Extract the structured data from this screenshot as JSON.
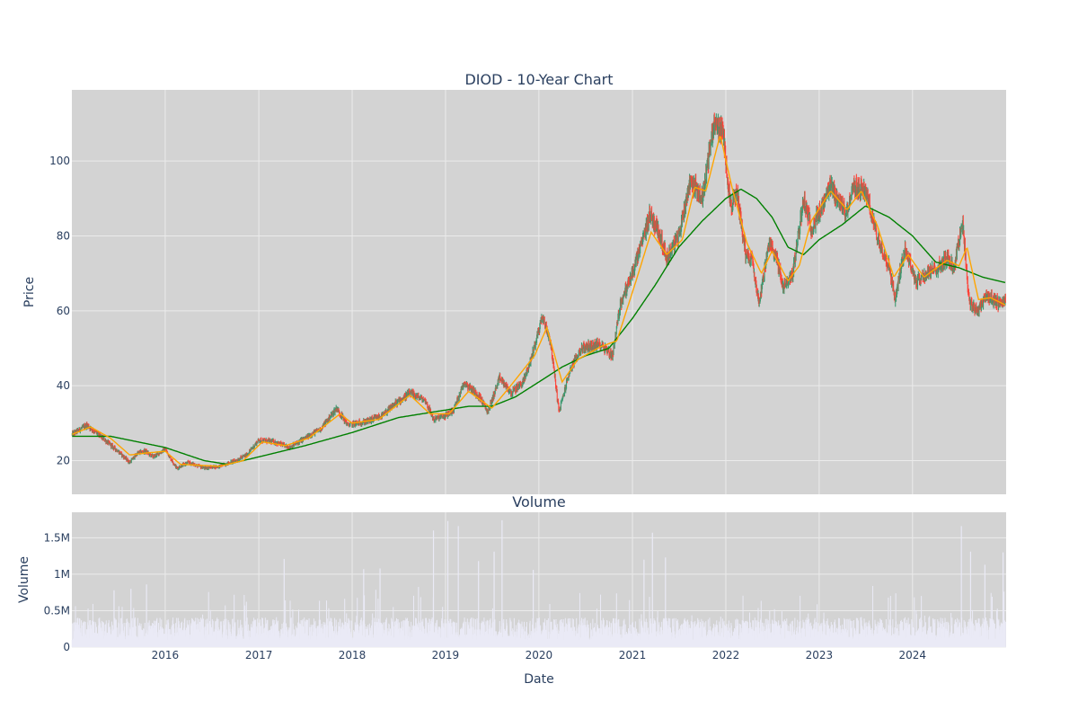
{
  "chart_data": [
    {
      "type": "candlestick",
      "title": "DIOD - 10-Year Chart",
      "ylabel": "Price",
      "xlabel": "",
      "xlim": [
        "2015-01-01",
        "2025-01-01"
      ],
      "ylim": [
        11,
        119
      ],
      "yticks": [
        20,
        40,
        60,
        80,
        100
      ],
      "grid": true,
      "legend": "none",
      "colors": {
        "up": "#3d9970",
        "down": "#ff4136",
        "ma_short": "#ffa500",
        "ma_long": "#008000",
        "background": "#d3d3d3",
        "grid": "#ebebeb"
      },
      "price_path_close": [
        [
          "2015-01-02",
          27.0
        ],
        [
          "2015-03-01",
          29.5
        ],
        [
          "2015-05-01",
          26.0
        ],
        [
          "2015-07-01",
          22.5
        ],
        [
          "2015-08-15",
          19.5
        ],
        [
          "2015-09-15",
          22.0
        ],
        [
          "2015-10-15",
          22.5
        ],
        [
          "2015-11-15",
          21.0
        ],
        [
          "2016-01-01",
          23.0
        ],
        [
          "2016-02-15",
          18.0
        ],
        [
          "2016-04-01",
          19.5
        ],
        [
          "2016-06-01",
          18.0
        ],
        [
          "2016-08-01",
          18.5
        ],
        [
          "2016-10-01",
          20.0
        ],
        [
          "2016-11-15",
          21.5
        ],
        [
          "2017-01-01",
          25.5
        ],
        [
          "2017-03-01",
          25.0
        ],
        [
          "2017-05-01",
          23.5
        ],
        [
          "2017-07-01",
          26.0
        ],
        [
          "2017-09-01",
          28.5
        ],
        [
          "2017-11-01",
          34.0
        ],
        [
          "2017-12-15",
          29.5
        ],
        [
          "2018-03-01",
          30.5
        ],
        [
          "2018-05-01",
          32.0
        ],
        [
          "2018-06-15",
          35.0
        ],
        [
          "2018-08-15",
          38.0
        ],
        [
          "2018-10-15",
          36.0
        ],
        [
          "2018-11-15",
          31.0
        ],
        [
          "2019-01-01",
          32.0
        ],
        [
          "2019-02-01",
          33.5
        ],
        [
          "2019-03-15",
          41.0
        ],
        [
          "2019-05-15",
          37.0
        ],
        [
          "2019-06-15",
          33.0
        ],
        [
          "2019-08-01",
          42.0
        ],
        [
          "2019-09-15",
          38.0
        ],
        [
          "2019-11-01",
          41.0
        ],
        [
          "2019-12-01",
          47.0
        ],
        [
          "2020-01-15",
          58.5
        ],
        [
          "2020-02-15",
          52.0
        ],
        [
          "2020-03-20",
          33.0
        ],
        [
          "2020-05-01",
          44.0
        ],
        [
          "2020-06-15",
          50.0
        ],
        [
          "2020-09-01",
          51.0
        ],
        [
          "2020-10-15",
          48.0
        ],
        [
          "2020-11-15",
          62.0
        ],
        [
          "2021-01-01",
          70.0
        ],
        [
          "2021-02-15",
          80.0
        ],
        [
          "2021-03-10",
          86.0
        ],
        [
          "2021-04-15",
          81.0
        ],
        [
          "2021-05-15",
          74.0
        ],
        [
          "2021-07-01",
          80.0
        ],
        [
          "2021-08-15",
          95.0
        ],
        [
          "2021-10-01",
          90.0
        ],
        [
          "2021-11-15",
          110.0
        ],
        [
          "2021-12-20",
          108.0
        ],
        [
          "2022-01-20",
          88.0
        ],
        [
          "2022-02-15",
          91.0
        ],
        [
          "2022-03-20",
          75.0
        ],
        [
          "2022-04-15",
          74.0
        ],
        [
          "2022-05-10",
          62.0
        ],
        [
          "2022-06-20",
          78.0
        ],
        [
          "2022-07-15",
          75.0
        ],
        [
          "2022-08-15",
          66.0
        ],
        [
          "2022-09-20",
          70.0
        ],
        [
          "2022-11-01",
          90.0
        ],
        [
          "2022-12-01",
          82.0
        ],
        [
          "2023-01-15",
          88.0
        ],
        [
          "2023-02-15",
          93.0
        ],
        [
          "2023-04-15",
          86.0
        ],
        [
          "2023-05-15",
          93.0
        ],
        [
          "2023-07-01",
          92.0
        ],
        [
          "2023-08-15",
          80.0
        ],
        [
          "2023-10-01",
          72.0
        ],
        [
          "2023-10-25",
          63.0
        ],
        [
          "2023-12-01",
          77.0
        ],
        [
          "2024-01-15",
          68.0
        ],
        [
          "2024-03-01",
          70.0
        ],
        [
          "2024-04-15",
          72.0
        ],
        [
          "2024-05-20",
          74.0
        ],
        [
          "2024-06-10",
          71.0
        ],
        [
          "2024-07-15",
          84.0
        ],
        [
          "2024-08-10",
          62.0
        ],
        [
          "2024-09-10",
          60.0
        ],
        [
          "2024-10-15",
          64.0
        ],
        [
          "2024-12-01",
          62.0
        ],
        [
          "2024-12-31",
          63.0
        ]
      ],
      "ma_short_path": [
        [
          "2015-01-02",
          27.0
        ],
        [
          "2015-03-15",
          29.0
        ],
        [
          "2015-06-01",
          26.0
        ],
        [
          "2015-08-15",
          21.5
        ],
        [
          "2015-10-15",
          22.0
        ],
        [
          "2016-01-01",
          22.5
        ],
        [
          "2016-03-01",
          19.0
        ],
        [
          "2016-08-01",
          18.5
        ],
        [
          "2016-11-01",
          20.0
        ],
        [
          "2017-01-15",
          25.0
        ],
        [
          "2017-04-15",
          24.0
        ],
        [
          "2017-07-15",
          26.0
        ],
        [
          "2017-11-15",
          32.5
        ],
        [
          "2017-12-31",
          30.0
        ],
        [
          "2018-04-15",
          31.0
        ],
        [
          "2018-08-15",
          37.5
        ],
        [
          "2018-11-01",
          32.5
        ],
        [
          "2019-01-15",
          32.5
        ],
        [
          "2019-04-01",
          38.5
        ],
        [
          "2019-07-01",
          34.0
        ],
        [
          "2019-09-01",
          39.0
        ],
        [
          "2019-12-15",
          48.0
        ],
        [
          "2020-02-01",
          55.5
        ],
        [
          "2020-04-01",
          41.0
        ],
        [
          "2020-06-01",
          47.0
        ],
        [
          "2020-09-01",
          50.5
        ],
        [
          "2020-11-01",
          52.0
        ],
        [
          "2021-01-15",
          68.0
        ],
        [
          "2021-03-15",
          81.0
        ],
        [
          "2021-05-15",
          75.0
        ],
        [
          "2021-07-15",
          79.0
        ],
        [
          "2021-09-01",
          93.0
        ],
        [
          "2021-10-15",
          92.0
        ],
        [
          "2021-12-10",
          107.0
        ],
        [
          "2022-01-25",
          93.0
        ],
        [
          "2022-03-25",
          78.0
        ],
        [
          "2022-05-20",
          70.0
        ],
        [
          "2022-07-01",
          76.0
        ],
        [
          "2022-09-01",
          68.0
        ],
        [
          "2022-10-15",
          72.0
        ],
        [
          "2022-12-01",
          84.0
        ],
        [
          "2023-02-15",
          92.0
        ],
        [
          "2023-04-20",
          87.0
        ],
        [
          "2023-06-15",
          92.0
        ],
        [
          "2023-08-15",
          83.0
        ],
        [
          "2023-10-20",
          69.0
        ],
        [
          "2023-12-15",
          75.0
        ],
        [
          "2024-02-15",
          69.0
        ],
        [
          "2024-05-15",
          73.5
        ],
        [
          "2024-07-01",
          72.0
        ],
        [
          "2024-08-01",
          77.0
        ],
        [
          "2024-09-15",
          63.0
        ],
        [
          "2024-11-01",
          63.5
        ],
        [
          "2024-12-31",
          61.5
        ]
      ],
      "ma_long_path": [
        [
          "2015-01-02",
          26.5
        ],
        [
          "2015-06-01",
          26.5
        ],
        [
          "2016-01-01",
          23.5
        ],
        [
          "2016-06-01",
          20.0
        ],
        [
          "2016-09-01",
          19.0
        ],
        [
          "2017-01-01",
          21.0
        ],
        [
          "2017-07-01",
          24.0
        ],
        [
          "2018-01-01",
          27.5
        ],
        [
          "2018-07-01",
          31.5
        ],
        [
          "2019-01-01",
          33.5
        ],
        [
          "2019-04-01",
          34.5
        ],
        [
          "2019-07-01",
          34.5
        ],
        [
          "2019-10-01",
          37.0
        ],
        [
          "2020-01-01",
          41.0
        ],
        [
          "2020-04-01",
          45.0
        ],
        [
          "2020-07-01",
          48.0
        ],
        [
          "2020-10-01",
          50.0
        ],
        [
          "2021-01-01",
          58.0
        ],
        [
          "2021-04-01",
          67.0
        ],
        [
          "2021-07-01",
          77.0
        ],
        [
          "2021-10-01",
          84.0
        ],
        [
          "2022-01-01",
          90.0
        ],
        [
          "2022-03-01",
          92.5
        ],
        [
          "2022-05-01",
          90.0
        ],
        [
          "2022-07-01",
          85.0
        ],
        [
          "2022-09-01",
          77.0
        ],
        [
          "2022-11-01",
          75.0
        ],
        [
          "2023-01-01",
          79.0
        ],
        [
          "2023-04-01",
          83.0
        ],
        [
          "2023-07-01",
          88.0
        ],
        [
          "2023-10-01",
          85.0
        ],
        [
          "2024-01-01",
          80.0
        ],
        [
          "2024-04-01",
          73.0
        ],
        [
          "2024-07-01",
          71.5
        ],
        [
          "2024-10-01",
          69.0
        ],
        [
          "2024-12-31",
          67.5
        ]
      ]
    },
    {
      "type": "bar",
      "title": "Volume",
      "ylabel": "Volume",
      "xlabel": "Date",
      "xlim": [
        "2015-01-01",
        "2025-01-01"
      ],
      "xticks": [
        "2016",
        "2017",
        "2018",
        "2019",
        "2020",
        "2021",
        "2022",
        "2023",
        "2024"
      ],
      "ylim": [
        0,
        1850000
      ],
      "yticks": [
        0,
        500000,
        1000000,
        1500000
      ],
      "ytick_labels": [
        "0",
        "0.5M",
        "1M",
        "1.5M"
      ],
      "grid": true,
      "colors": {
        "bar": "#eaeaf6",
        "background": "#d3d3d3",
        "grid": "#ebebeb"
      },
      "spikes": [
        [
          "2015-06-15",
          780000
        ],
        [
          "2015-08-20",
          800000
        ],
        [
          "2015-10-20",
          860000
        ],
        [
          "2017-04-10",
          1210000
        ],
        [
          "2018-02-15",
          1070000
        ],
        [
          "2018-04-20",
          1080000
        ],
        [
          "2018-11-15",
          1600000
        ],
        [
          "2019-01-10",
          1730000
        ],
        [
          "2019-02-20",
          1660000
        ],
        [
          "2019-05-10",
          1180000
        ],
        [
          "2019-07-10",
          1310000
        ],
        [
          "2019-08-10",
          1740000
        ],
        [
          "2019-12-10",
          1060000
        ],
        [
          "2021-02-15",
          1200000
        ],
        [
          "2021-03-20",
          1570000
        ],
        [
          "2021-05-10",
          1230000
        ],
        [
          "2024-07-10",
          1660000
        ],
        [
          "2024-08-15",
          1310000
        ],
        [
          "2024-10-10",
          1130000
        ],
        [
          "2024-12-20",
          1300000
        ]
      ],
      "base_level": 280000
    }
  ]
}
